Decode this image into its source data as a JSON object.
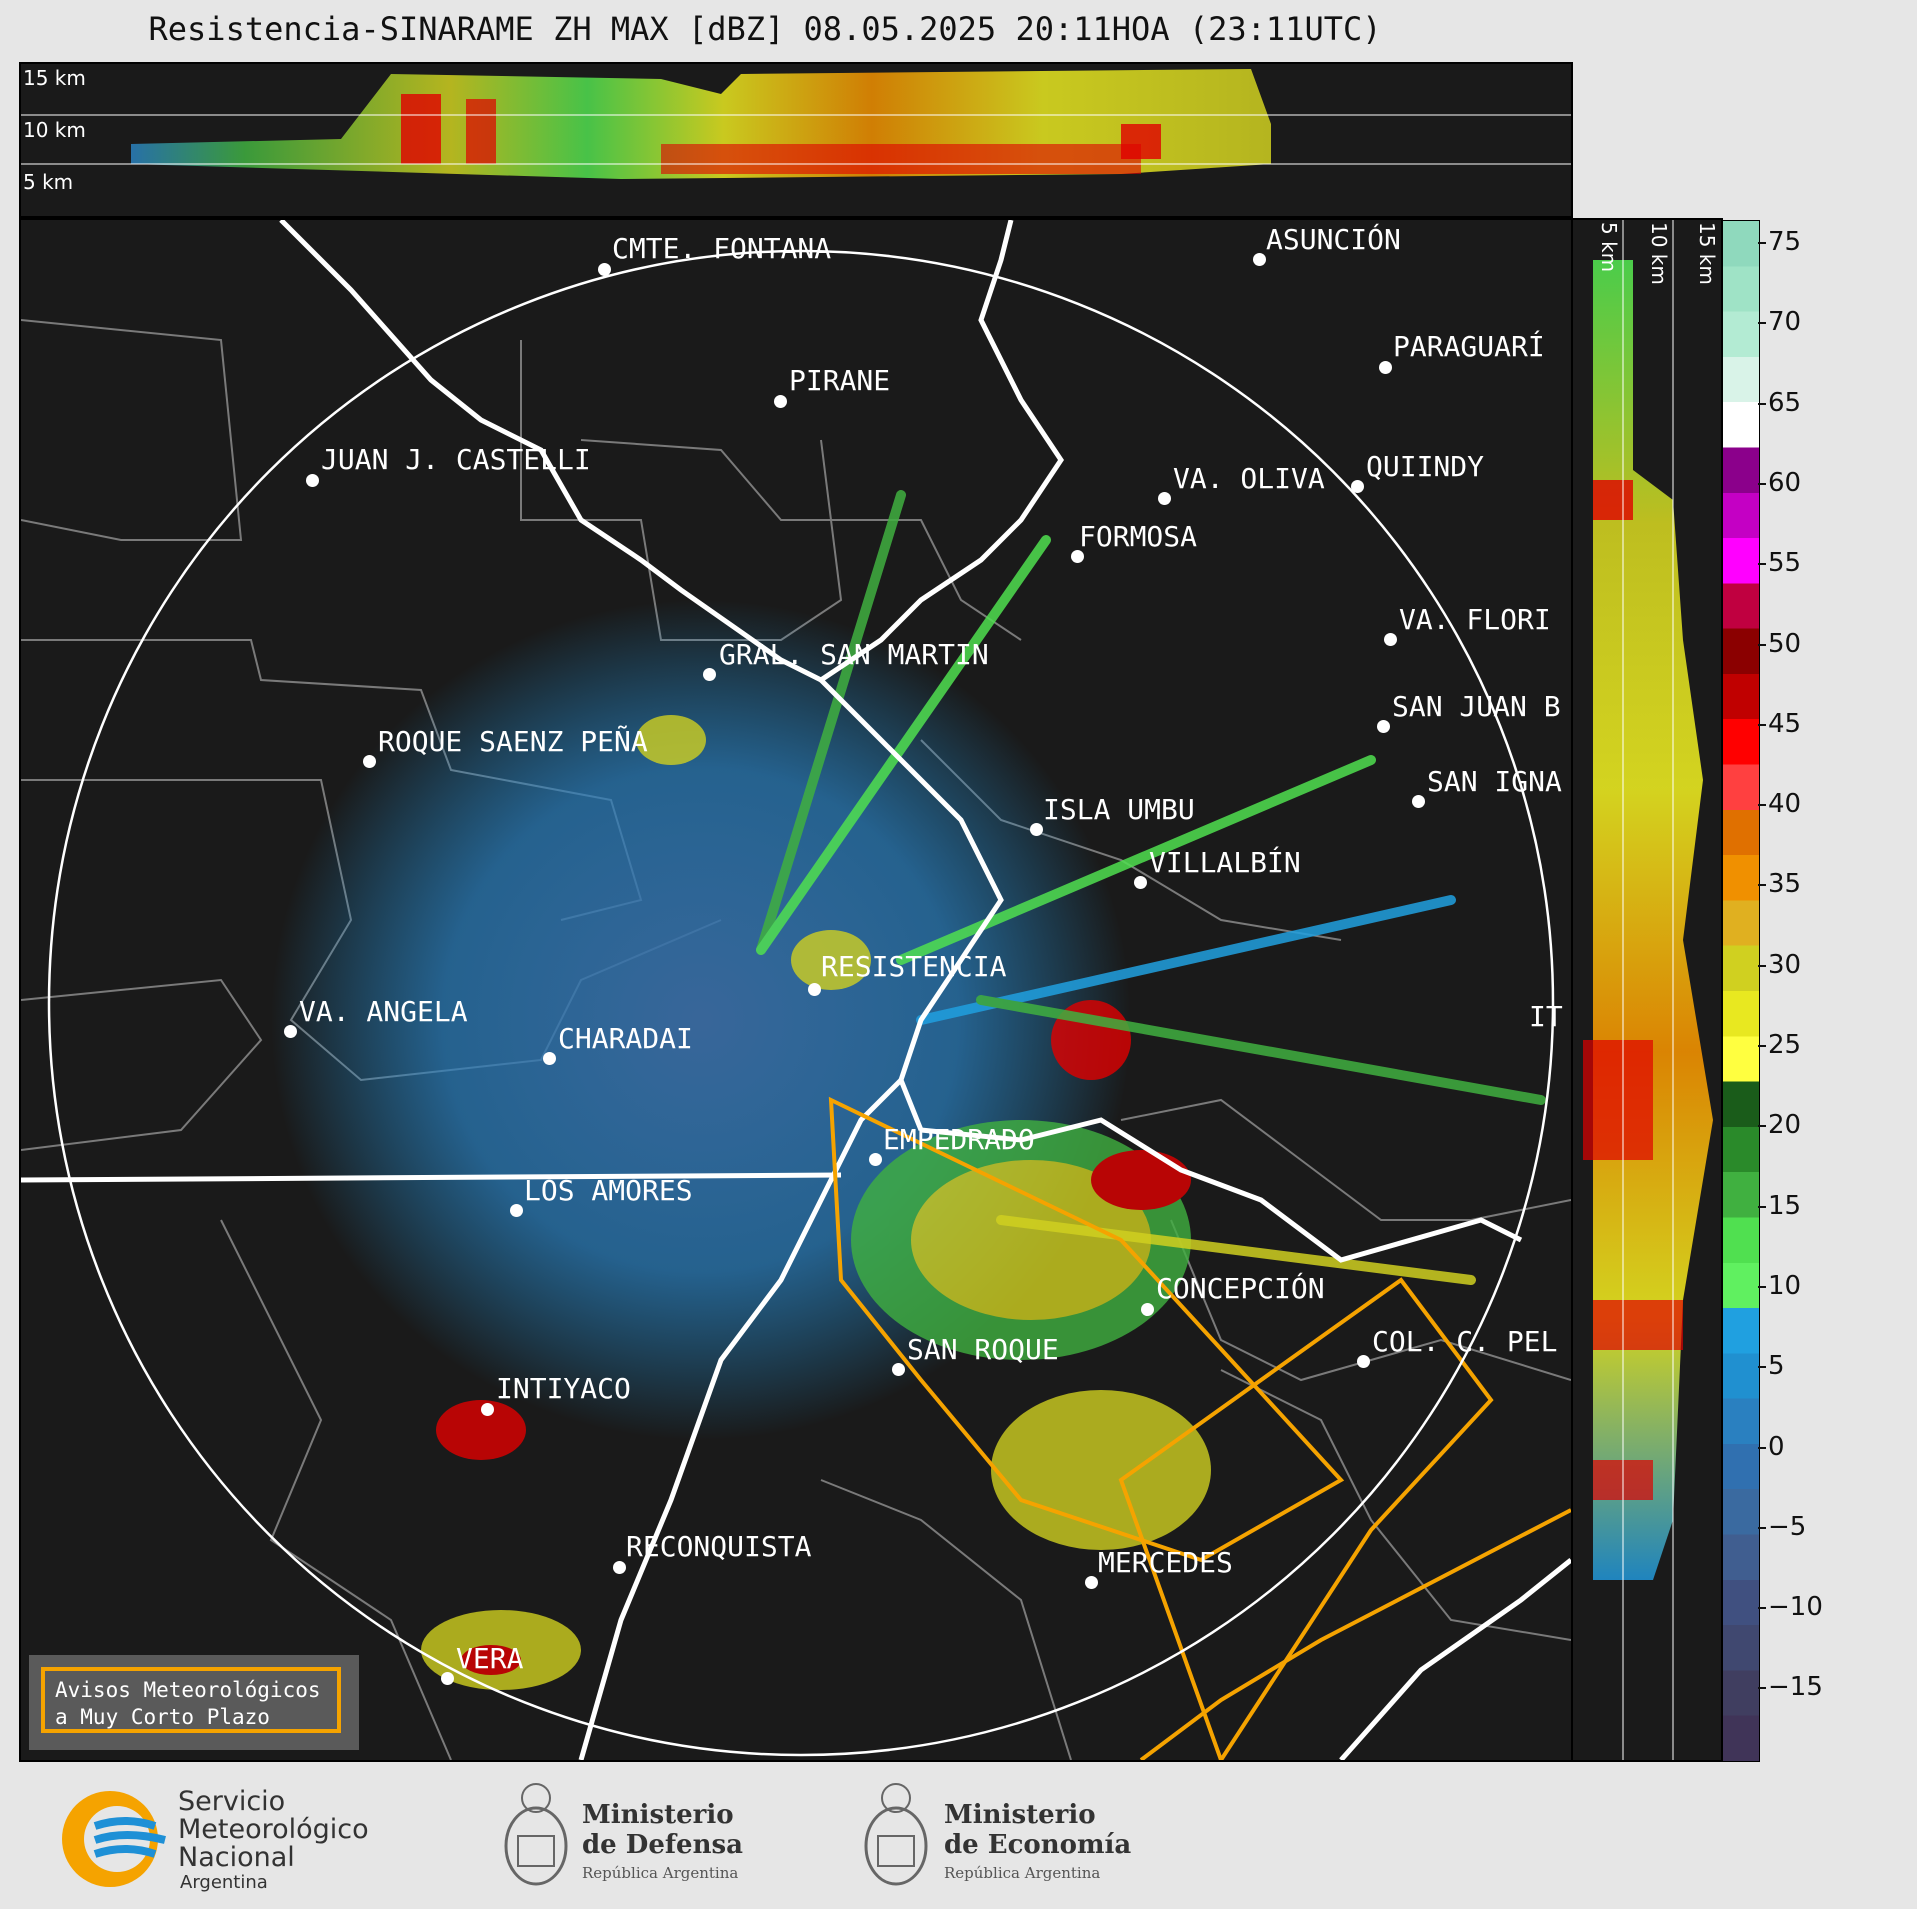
{
  "header": {
    "title": "Resistencia-SINARAME ZH MAX [dBZ] 08.05.2025 20:11HOA (23:11UTC)"
  },
  "height_labels": {
    "top": [
      "15 km",
      "10 km",
      "5 km"
    ],
    "side": [
      "5 km",
      "10 km",
      "15 km"
    ]
  },
  "colorbar": {
    "ticks": [
      "75",
      "70",
      "65",
      "60",
      "55",
      "50",
      "45",
      "40",
      "35",
      "30",
      "25",
      "20",
      "15",
      "10",
      "5",
      "0",
      "−5",
      "−10",
      "−15"
    ],
    "colors": [
      "#8fd9bd",
      "#9fe3c6",
      "#b3ebd3",
      "#d9f3e8",
      "#ffffff",
      "#8b008b",
      "#c400c4",
      "#ff00ff",
      "#c00040",
      "#8b0000",
      "#c00000",
      "#ff0000",
      "#ff4040",
      "#e07000",
      "#f09000",
      "#e0b020",
      "#d0d020",
      "#e8e820",
      "#ffff40",
      "#1a5c1a",
      "#2a8a2a",
      "#40b040",
      "#50e050",
      "#60f060",
      "#20a0e0",
      "#2090d0",
      "#2a80c0",
      "#3070b0",
      "#3a6aa0",
      "#405e90",
      "#405080",
      "#404870",
      "#403e60",
      "#403458"
    ],
    "accent": "#f5a300"
  },
  "cities": [
    {
      "name": "CMTE. FONTANA"
    },
    {
      "name": "ASUNCIÓN"
    },
    {
      "name": "PARAGUARÍ"
    },
    {
      "name": "PIRANE"
    },
    {
      "name": "JUAN J. CASTELLI"
    },
    {
      "name": "VA. OLIVA"
    },
    {
      "name": "QUIINDY"
    },
    {
      "name": "FORMOSA"
    },
    {
      "name": "VA. FLORI"
    },
    {
      "name": "GRAL. SAN MARTIN"
    },
    {
      "name": "SAN JUAN B"
    },
    {
      "name": "ROQUE SAENZ PEÑA"
    },
    {
      "name": "SAN IGNA"
    },
    {
      "name": "ISLA UMBU"
    },
    {
      "name": "VILLALBÍN"
    },
    {
      "name": "RESISTENCIA"
    },
    {
      "name": "VA. ANGELA"
    },
    {
      "name": "CHARADAI"
    },
    {
      "name": "IT"
    },
    {
      "name": "EMPEDRADO"
    },
    {
      "name": "LOS AMORES"
    },
    {
      "name": "CONCEPCIÓN"
    },
    {
      "name": "SAN ROQUE"
    },
    {
      "name": "COL. C. PEL"
    },
    {
      "name": "INTIYACO"
    },
    {
      "name": "RECONQUISTA"
    },
    {
      "name": "MERCEDES"
    },
    {
      "name": "VERA"
    }
  ],
  "avisos": {
    "line1": "Avisos Meteorológicos",
    "line2": "a Muy Corto Plazo"
  },
  "footer": {
    "smn": {
      "line1": "Servicio",
      "line2": "Meteorológico",
      "line3": "Nacional",
      "line4": "Argentina"
    },
    "defensa": {
      "line1": "Ministerio",
      "line2": "de Defensa",
      "line3": "República Argentina"
    },
    "economia": {
      "line1": "Ministerio",
      "line2": "de Economía",
      "line3": "República Argentina"
    }
  }
}
